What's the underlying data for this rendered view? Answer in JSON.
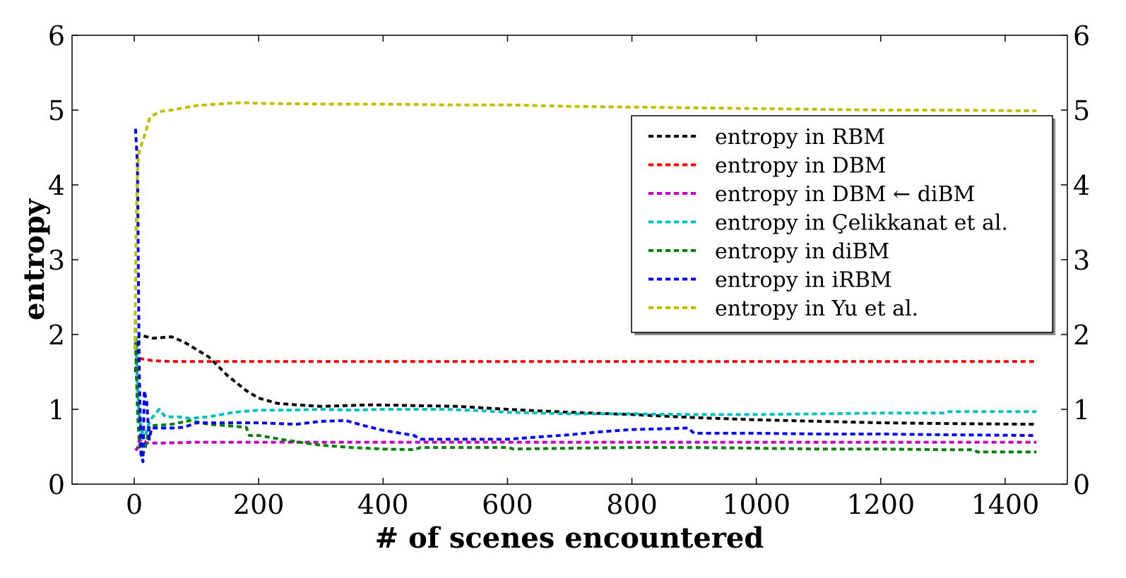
{
  "chart_data": {
    "type": "line",
    "title": "",
    "xlabel": "# of scenes encountered",
    "ylabel": "entropy",
    "xlim": [
      -100,
      1500
    ],
    "ylim": [
      0,
      6
    ],
    "x_ticks": [
      0,
      200,
      400,
      600,
      800,
      1000,
      1200,
      1400
    ],
    "y_ticks": [
      0,
      1,
      2,
      3,
      4,
      5,
      6
    ],
    "legend_position": "upper-right",
    "grid": false,
    "line_style": "dashed",
    "series": [
      {
        "name": "entropy in RBM",
        "color": "#000000",
        "points": [
          [
            2,
            1.5
          ],
          [
            5,
            1.85
          ],
          [
            8,
            2.0
          ],
          [
            15,
            1.98
          ],
          [
            30,
            1.95
          ],
          [
            60,
            1.97
          ],
          [
            80,
            1.9
          ],
          [
            100,
            1.8
          ],
          [
            120,
            1.7
          ],
          [
            150,
            1.45
          ],
          [
            180,
            1.25
          ],
          [
            200,
            1.15
          ],
          [
            230,
            1.08
          ],
          [
            260,
            1.06
          ],
          [
            300,
            1.04
          ],
          [
            340,
            1.05
          ],
          [
            380,
            1.06
          ],
          [
            450,
            1.05
          ],
          [
            520,
            1.04
          ],
          [
            600,
            1.0
          ],
          [
            700,
            0.96
          ],
          [
            800,
            0.93
          ],
          [
            900,
            0.89
          ],
          [
            1000,
            0.86
          ],
          [
            1100,
            0.84
          ],
          [
            1200,
            0.82
          ],
          [
            1300,
            0.81
          ],
          [
            1450,
            0.8
          ]
        ]
      },
      {
        "name": "entropy in DBM",
        "color": "#ff0000",
        "points": [
          [
            8,
            1.68
          ],
          [
            30,
            1.65
          ],
          [
            60,
            1.64
          ],
          [
            200,
            1.64
          ],
          [
            600,
            1.64
          ],
          [
            1000,
            1.64
          ],
          [
            1450,
            1.64
          ]
        ]
      },
      {
        "name": "entropy in DBM ← diBM",
        "color": "#bf00bf",
        "points": [
          [
            2,
            0.45
          ],
          [
            5,
            0.48
          ],
          [
            8,
            0.58
          ],
          [
            12,
            0.6
          ],
          [
            20,
            0.55
          ],
          [
            50,
            0.55
          ],
          [
            100,
            0.56
          ],
          [
            200,
            0.56
          ],
          [
            400,
            0.56
          ],
          [
            600,
            0.56
          ],
          [
            800,
            0.56
          ],
          [
            1000,
            0.56
          ],
          [
            1200,
            0.56
          ],
          [
            1450,
            0.56
          ]
        ]
      },
      {
        "name": "entropy in Çelikkanat et al.",
        "color": "#00bfbf",
        "points": [
          [
            2,
            2.2
          ],
          [
            5,
            1.3
          ],
          [
            8,
            0.9
          ],
          [
            12,
            0.7
          ],
          [
            18,
            0.65
          ],
          [
            25,
            0.85
          ],
          [
            40,
            1.0
          ],
          [
            50,
            0.9
          ],
          [
            70,
            0.9
          ],
          [
            90,
            0.88
          ],
          [
            120,
            0.9
          ],
          [
            160,
            0.96
          ],
          [
            200,
            0.99
          ],
          [
            250,
            0.99
          ],
          [
            300,
            1.0
          ],
          [
            350,
            0.99
          ],
          [
            400,
            1.0
          ],
          [
            450,
            1.0
          ],
          [
            500,
            1.0
          ],
          [
            560,
            0.98
          ],
          [
            600,
            0.96
          ],
          [
            700,
            0.94
          ],
          [
            800,
            0.94
          ],
          [
            900,
            0.93
          ],
          [
            1000,
            0.93
          ],
          [
            1100,
            0.94
          ],
          [
            1200,
            0.95
          ],
          [
            1300,
            0.95
          ],
          [
            1310,
            0.97
          ],
          [
            1450,
            0.97
          ]
        ]
      },
      {
        "name": "entropy in diBM",
        "color": "#008000",
        "points": [
          [
            2,
            1.9
          ],
          [
            5,
            1.0
          ],
          [
            8,
            0.55
          ],
          [
            12,
            0.35
          ],
          [
            18,
            0.5
          ],
          [
            25,
            0.78
          ],
          [
            60,
            0.8
          ],
          [
            90,
            0.85
          ],
          [
            120,
            0.8
          ],
          [
            150,
            0.78
          ],
          [
            180,
            0.76
          ],
          [
            185,
            0.65
          ],
          [
            200,
            0.65
          ],
          [
            250,
            0.58
          ],
          [
            300,
            0.52
          ],
          [
            350,
            0.49
          ],
          [
            400,
            0.47
          ],
          [
            450,
            0.46
          ],
          [
            460,
            0.49
          ],
          [
            600,
            0.49
          ],
          [
            610,
            0.47
          ],
          [
            700,
            0.48
          ],
          [
            800,
            0.49
          ],
          [
            900,
            0.49
          ],
          [
            1000,
            0.48
          ],
          [
            1100,
            0.47
          ],
          [
            1200,
            0.47
          ],
          [
            1300,
            0.46
          ],
          [
            1350,
            0.46
          ],
          [
            1355,
            0.43
          ],
          [
            1450,
            0.43
          ]
        ]
      },
      {
        "name": "entropy in iRBM",
        "color": "#0000ff",
        "points": [
          [
            2,
            4.75
          ],
          [
            5,
            4.3
          ],
          [
            8,
            1.5
          ],
          [
            11,
            0.4
          ],
          [
            14,
            0.3
          ],
          [
            16,
            1.25
          ],
          [
            20,
            1.1
          ],
          [
            24,
            0.6
          ],
          [
            28,
            0.75
          ],
          [
            60,
            0.75
          ],
          [
            80,
            0.76
          ],
          [
            100,
            0.82
          ],
          [
            150,
            0.82
          ],
          [
            200,
            0.82
          ],
          [
            230,
            0.81
          ],
          [
            260,
            0.8
          ],
          [
            300,
            0.84
          ],
          [
            340,
            0.85
          ],
          [
            370,
            0.78
          ],
          [
            400,
            0.72
          ],
          [
            450,
            0.65
          ],
          [
            460,
            0.6
          ],
          [
            500,
            0.6
          ],
          [
            600,
            0.6
          ],
          [
            700,
            0.66
          ],
          [
            750,
            0.7
          ],
          [
            800,
            0.73
          ],
          [
            850,
            0.74
          ],
          [
            890,
            0.75
          ],
          [
            900,
            0.68
          ],
          [
            1000,
            0.68
          ],
          [
            1100,
            0.67
          ],
          [
            1200,
            0.67
          ],
          [
            1300,
            0.66
          ],
          [
            1450,
            0.65
          ]
        ]
      },
      {
        "name": "entropy in Yu et al.",
        "color": "#bfbf00",
        "points": [
          [
            1,
            1.8
          ],
          [
            3,
            3.4
          ],
          [
            5,
            4.2
          ],
          [
            8,
            4.45
          ],
          [
            12,
            4.55
          ],
          [
            18,
            4.7
          ],
          [
            25,
            4.9
          ],
          [
            40,
            4.98
          ],
          [
            60,
            5.0
          ],
          [
            100,
            5.06
          ],
          [
            150,
            5.09
          ],
          [
            175,
            5.1
          ],
          [
            200,
            5.09
          ],
          [
            300,
            5.08
          ],
          [
            400,
            5.08
          ],
          [
            500,
            5.07
          ],
          [
            600,
            5.07
          ],
          [
            700,
            5.05
          ],
          [
            800,
            5.04
          ],
          [
            900,
            5.03
          ],
          [
            1000,
            5.02
          ],
          [
            1100,
            5.01
          ],
          [
            1200,
            5.0
          ],
          [
            1300,
            5.0
          ],
          [
            1450,
            4.99
          ]
        ]
      }
    ]
  }
}
